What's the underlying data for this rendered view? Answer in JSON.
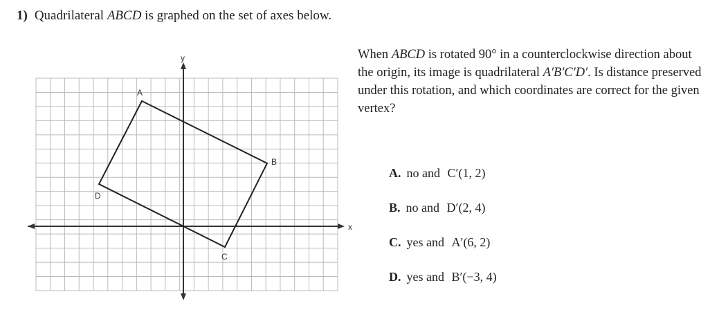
{
  "question": {
    "number": "1)",
    "title": [
      "Quadrilateral ",
      "ABCD",
      " is graphed on the set of axes below."
    ],
    "graph": {
      "x_label": "x",
      "y_label": "y",
      "vertices": [
        "A",
        "B",
        "C",
        "D"
      ]
    },
    "prompt": [
      "When ",
      "ABCD",
      " is rotated 90° in a counterclockwise direction about the origin, its image is quadrilateral ",
      "A′B′C′D′",
      ". Is distance preserved under this rotation, and which coordinates are correct for the given vertex?"
    ],
    "choices": [
      {
        "letter": "A.",
        "text": "no and",
        "point": "C′(1, 2)"
      },
      {
        "letter": "B.",
        "text": "no and",
        "point": "D′(2, 4)"
      },
      {
        "letter": "C.",
        "text": "yes and",
        "point": "A′(6, 2)"
      },
      {
        "letter": "D.",
        "text": "yes and",
        "point": "B′(−3, 4)"
      }
    ]
  }
}
